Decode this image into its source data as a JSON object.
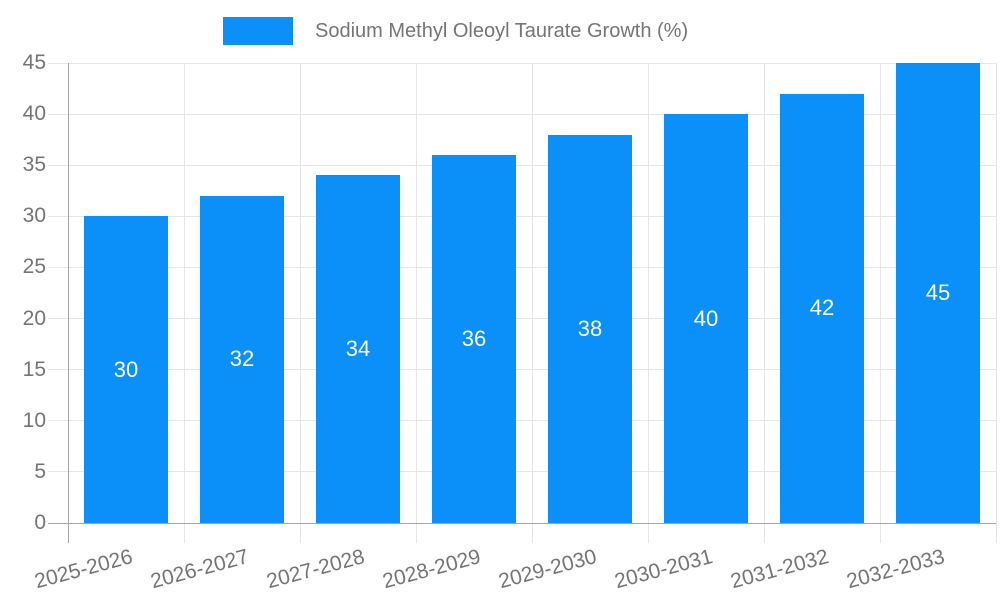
{
  "legend": {
    "label": "Sodium Methyl Oleoyl Taurate Growth (%)"
  },
  "chart_data": {
    "type": "bar",
    "title": "",
    "legend": "Sodium Methyl Oleoyl Taurate Growth (%)",
    "legend_position": "top",
    "categories": [
      "2025-2026",
      "2026-2027",
      "2027-2028",
      "2028-2029",
      "2029-2030",
      "2030-2031",
      "2031-2032",
      "2032-2033"
    ],
    "values": [
      30,
      32,
      34,
      36,
      38,
      40,
      42,
      45
    ],
    "bar_value_labels": [
      "30",
      "32",
      "34",
      "36",
      "38",
      "40",
      "42",
      "45"
    ],
    "xlabel": "",
    "ylabel": "",
    "ylim": [
      0,
      45
    ],
    "y_ticks": [
      0,
      5,
      10,
      15,
      20,
      25,
      30,
      35,
      40,
      45
    ],
    "grid": true,
    "colors": {
      "bar": "#0A90F8",
      "bar_label": "#ffffff",
      "gridline": "#e6e6e6",
      "axis_line": "#a6a6a6",
      "axis_text": "#757575"
    }
  }
}
